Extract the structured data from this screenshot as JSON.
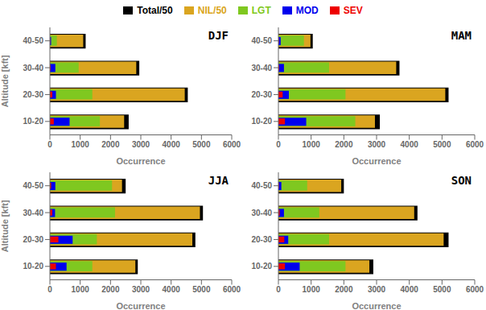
{
  "chart_data": [
    {
      "type": "bar",
      "orientation": "horizontal",
      "title": "DJF",
      "legend": "top",
      "categories": [
        "10-20",
        "20-30",
        "30-40",
        "40-50"
      ],
      "series": [
        {
          "name": "Total/50",
          "color": "#000000",
          "values": [
            2600,
            4550,
            2950,
            1180
          ]
        },
        {
          "name": "NIL/50",
          "color": "#DAA520",
          "values": [
            2450,
            4450,
            2850,
            1100
          ]
        },
        {
          "name": "LGT",
          "color": "#7FC820",
          "values": [
            1650,
            1400,
            950,
            230
          ]
        },
        {
          "name": "MOD",
          "color": "#0000EE",
          "values": [
            650,
            200,
            180,
            40
          ]
        },
        {
          "name": "SEV",
          "color": "#EE0000",
          "values": [
            130,
            80,
            20,
            8
          ]
        }
      ],
      "xlim": [
        0,
        6000
      ],
      "xticks": [
        0,
        1000,
        2000,
        3000,
        4000,
        5000,
        6000
      ],
      "xlabel": "Occurrence",
      "ylabel": "Altitude [kft]"
    },
    {
      "type": "bar",
      "orientation": "horizontal",
      "title": "MAM",
      "categories": [
        "10-20",
        "20-30",
        "30-40",
        "40-50"
      ],
      "series": [
        {
          "name": "Total/50",
          "color": "#000000",
          "values": [
            3100,
            5200,
            3700,
            1050
          ]
        },
        {
          "name": "NIL/50",
          "color": "#DAA520",
          "values": [
            2950,
            5100,
            3600,
            980
          ]
        },
        {
          "name": "LGT",
          "color": "#7FC820",
          "values": [
            2350,
            2050,
            1550,
            780
          ]
        },
        {
          "name": "MOD",
          "color": "#0000EE",
          "values": [
            850,
            320,
            170,
            70
          ]
        },
        {
          "name": "SEV",
          "color": "#EE0000",
          "values": [
            200,
            130,
            20,
            12
          ]
        }
      ],
      "xlim": [
        0,
        6000
      ],
      "xticks": [
        0,
        1000,
        2000,
        3000,
        4000,
        5000,
        6000
      ],
      "xlabel": "Occurrence"
    },
    {
      "type": "bar",
      "orientation": "horizontal",
      "title": "JJA",
      "categories": [
        "10-20",
        "20-30",
        "30-40",
        "40-50"
      ],
      "series": [
        {
          "name": "Total/50",
          "color": "#000000",
          "values": [
            2900,
            4800,
            5050,
            2500
          ]
        },
        {
          "name": "NIL/50",
          "color": "#DAA520",
          "values": [
            2820,
            4700,
            4950,
            2380
          ]
        },
        {
          "name": "LGT",
          "color": "#7FC820",
          "values": [
            1400,
            1550,
            2150,
            2050
          ]
        },
        {
          "name": "MOD",
          "color": "#0000EE",
          "values": [
            550,
            750,
            170,
            180
          ]
        },
        {
          "name": "SEV",
          "color": "#EE0000",
          "values": [
            200,
            280,
            80,
            40
          ]
        }
      ],
      "xlim": [
        0,
        6000
      ],
      "xticks": [
        0,
        1000,
        2000,
        3000,
        4000,
        5000,
        6000
      ],
      "xlabel": "Occurrence",
      "ylabel": "Altitude [kft]"
    },
    {
      "type": "bar",
      "orientation": "horizontal",
      "title": "SON",
      "categories": [
        "10-20",
        "20-30",
        "30-40",
        "40-50"
      ],
      "series": [
        {
          "name": "Total/50",
          "color": "#000000",
          "values": [
            2900,
            5200,
            4250,
            2000
          ]
        },
        {
          "name": "NIL/50",
          "color": "#DAA520",
          "values": [
            2780,
            5050,
            4150,
            1920
          ]
        },
        {
          "name": "LGT",
          "color": "#7FC820",
          "values": [
            2050,
            1550,
            1250,
            880
          ]
        },
        {
          "name": "MOD",
          "color": "#0000EE",
          "values": [
            650,
            300,
            170,
            90
          ]
        },
        {
          "name": "SEV",
          "color": "#EE0000",
          "values": [
            200,
            180,
            40,
            15
          ]
        }
      ],
      "xlim": [
        0,
        6000
      ],
      "xticks": [
        0,
        1000,
        2000,
        3000,
        4000,
        5000,
        6000
      ],
      "xlabel": "Occurrence"
    }
  ]
}
